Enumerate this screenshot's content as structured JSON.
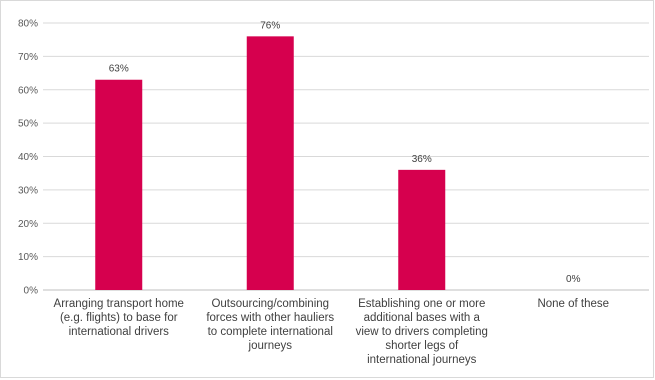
{
  "chart_data": {
    "type": "bar",
    "categories": [
      [
        "Arranging transport home",
        "(e.g. flights) to base for",
        "international drivers"
      ],
      [
        "Outsourcing/combining",
        "forces with other hauliers",
        "to complete international",
        "journeys"
      ],
      [
        "Establishing one or more",
        "additional bases with a",
        "view to drivers completing",
        "shorter legs of",
        "international journeys"
      ],
      [
        "None of these"
      ]
    ],
    "values": [
      63,
      76,
      36,
      0
    ],
    "data_labels": [
      "63%",
      "76%",
      "36%",
      "0%"
    ],
    "y_ticks": [
      "0%",
      "10%",
      "20%",
      "30%",
      "40%",
      "50%",
      "60%",
      "70%",
      "80%"
    ],
    "ylim": [
      0,
      80
    ],
    "grid": true,
    "legend": "none",
    "title": "",
    "xlabel": "",
    "ylabel": "",
    "colors": {
      "bar": "#d6004e",
      "grid": "#d9d9d9",
      "axis": "#bfbfbf"
    }
  }
}
